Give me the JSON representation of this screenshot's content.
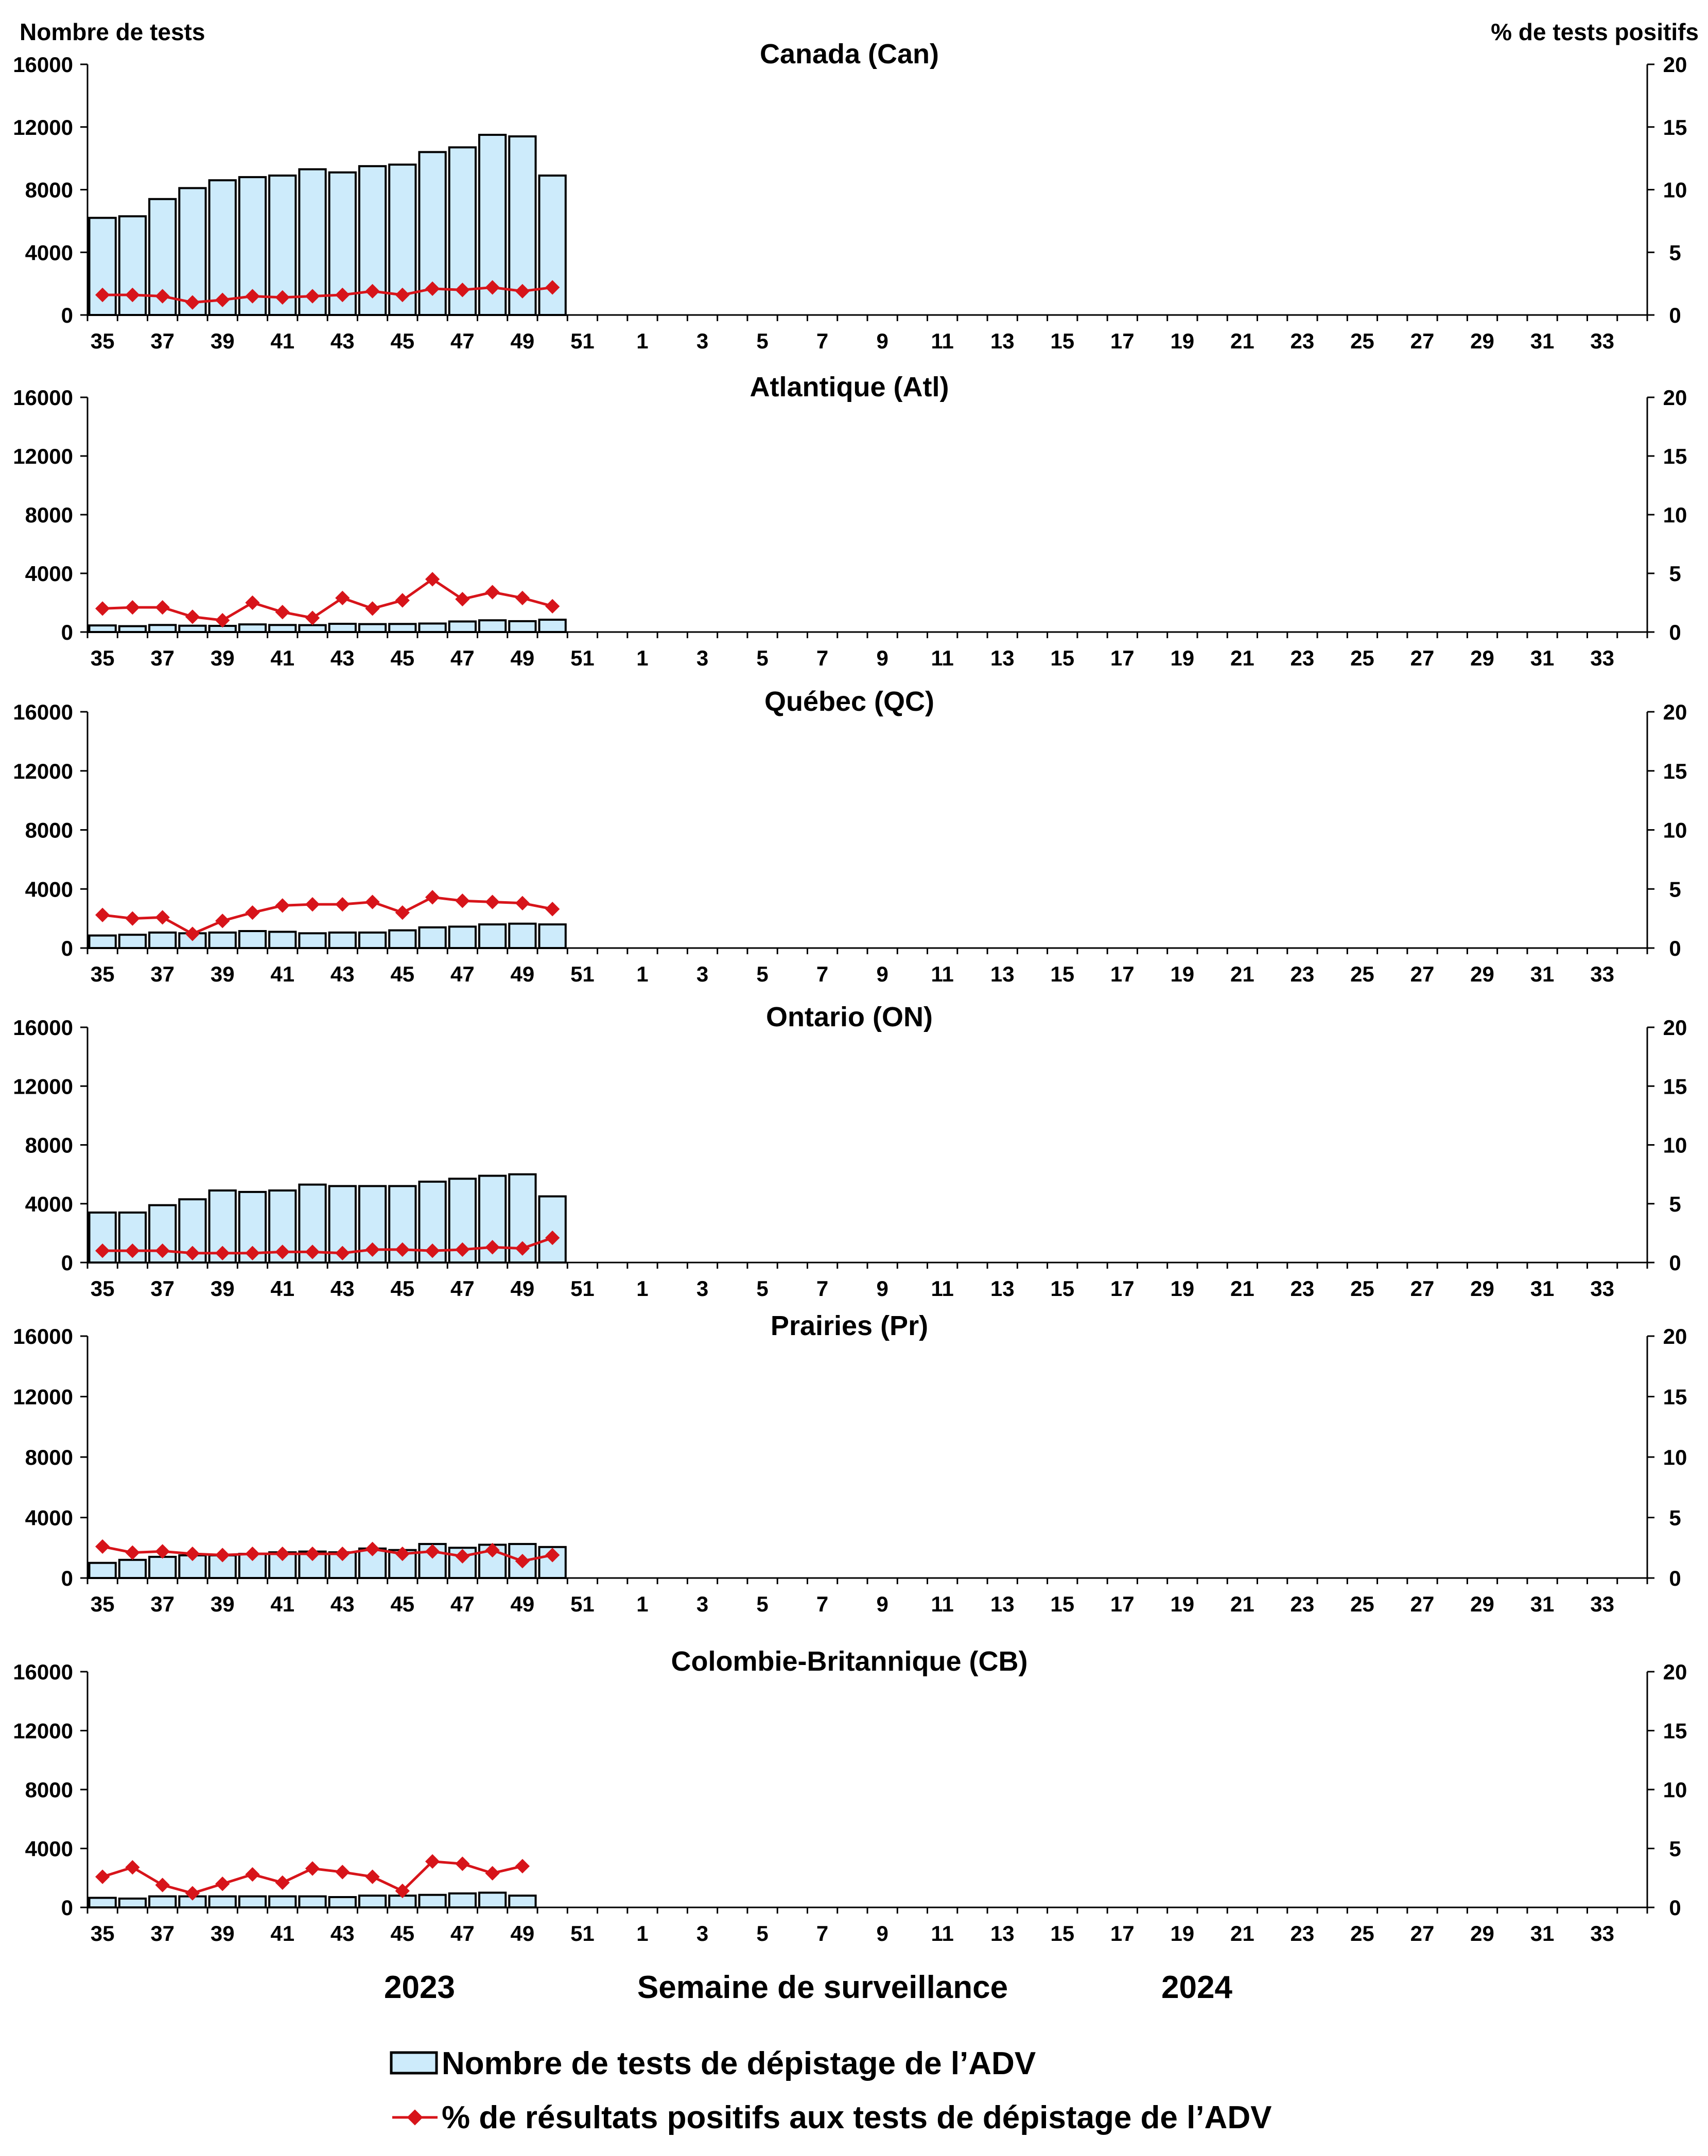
{
  "axis_titles": {
    "left": "Nombre de tests",
    "right": "% de tests positifs",
    "x": "Semaine de surveillance"
  },
  "year_labels": [
    "2023",
    "2024"
  ],
  "legend": {
    "bars": "Nombre de tests de dépistage de l’ADV",
    "line": "% de résultats positifs aux tests de dépistage de l’ADV"
  },
  "colors": {
    "bar_fill": "#cdebfb",
    "bar_stroke": "#000000",
    "line": "#d7141a"
  },
  "chart_data": [
    {
      "type": "bar+line",
      "title": "Canada (Can)",
      "x_tick_labels": [
        "35",
        "37",
        "39",
        "41",
        "43",
        "45",
        "47",
        "49",
        "51",
        "1",
        "3",
        "5",
        "7",
        "9",
        "11",
        "13",
        "15",
        "17",
        "19",
        "21",
        "23",
        "25",
        "27",
        "29",
        "31",
        "33"
      ],
      "weeks": [
        35,
        36,
        37,
        38,
        39,
        40,
        41,
        42,
        43,
        44,
        45,
        46,
        47,
        48,
        49,
        50
      ],
      "tests": [
        6200,
        6300,
        7400,
        8100,
        8600,
        8800,
        8900,
        9300,
        9100,
        9500,
        9600,
        10400,
        10700,
        11500,
        11400,
        8900
      ],
      "pct_positive": [
        1.6,
        1.6,
        1.5,
        1.0,
        1.2,
        1.5,
        1.4,
        1.5,
        1.6,
        1.9,
        1.6,
        2.1,
        2.0,
        2.2,
        1.9,
        2.2
      ],
      "y_left": {
        "min": 0,
        "max": 16000,
        "ticks": [
          "0",
          "4000",
          "8000",
          "12000",
          "16000"
        ]
      },
      "y_right": {
        "min": 0,
        "max": 20,
        "ticks": [
          "0",
          "5",
          "10",
          "15",
          "20"
        ]
      }
    },
    {
      "type": "bar+line",
      "title": "Atlantique (Atl)",
      "x_tick_labels": [
        "35",
        "37",
        "39",
        "41",
        "43",
        "45",
        "47",
        "49",
        "51",
        "1",
        "3",
        "5",
        "7",
        "9",
        "11",
        "13",
        "15",
        "17",
        "19",
        "21",
        "23",
        "25",
        "27",
        "29",
        "31",
        "33"
      ],
      "weeks": [
        35,
        36,
        37,
        38,
        39,
        40,
        41,
        42,
        43,
        44,
        45,
        46,
        47,
        48,
        49,
        50
      ],
      "tests": [
        450,
        400,
        480,
        430,
        420,
        520,
        480,
        470,
        560,
        540,
        550,
        580,
        720,
        800,
        740,
        840
      ],
      "pct_positive": [
        2.0,
        2.1,
        2.1,
        1.3,
        1.0,
        2.5,
        1.7,
        1.2,
        2.9,
        2.0,
        2.7,
        4.5,
        2.8,
        3.4,
        2.9,
        2.2
      ],
      "y_left": {
        "min": 0,
        "max": 16000,
        "ticks": [
          "0",
          "4000",
          "8000",
          "12000",
          "16000"
        ]
      },
      "y_right": {
        "min": 0,
        "max": 20,
        "ticks": [
          "0",
          "5",
          "10",
          "15",
          "20"
        ]
      }
    },
    {
      "type": "bar+line",
      "title": "Québec (QC)",
      "x_tick_labels": [
        "35",
        "37",
        "39",
        "41",
        "43",
        "45",
        "47",
        "49",
        "51",
        "1",
        "3",
        "5",
        "7",
        "9",
        "11",
        "13",
        "15",
        "17",
        "19",
        "21",
        "23",
        "25",
        "27",
        "29",
        "31",
        "33"
      ],
      "weeks": [
        35,
        36,
        37,
        38,
        39,
        40,
        41,
        42,
        43,
        44,
        45,
        46,
        47,
        48,
        49,
        50
      ],
      "tests": [
        850,
        900,
        1050,
        1000,
        1050,
        1150,
        1100,
        1000,
        1050,
        1050,
        1200,
        1400,
        1450,
        1600,
        1650,
        1600
      ],
      "pct_positive": [
        2.8,
        2.5,
        2.6,
        1.2,
        2.3,
        3.0,
        3.6,
        3.7,
        3.7,
        3.9,
        3.0,
        4.3,
        4.0,
        3.9,
        3.8,
        3.3
      ],
      "y_left": {
        "min": 0,
        "max": 16000,
        "ticks": [
          "0",
          "4000",
          "8000",
          "12000",
          "16000"
        ]
      },
      "y_right": {
        "min": 0,
        "max": 20,
        "ticks": [
          "0",
          "5",
          "10",
          "15",
          "20"
        ]
      }
    },
    {
      "type": "bar+line",
      "title": "Ontario (ON)",
      "x_tick_labels": [
        "35",
        "37",
        "39",
        "41",
        "43",
        "45",
        "47",
        "49",
        "51",
        "1",
        "3",
        "5",
        "7",
        "9",
        "11",
        "13",
        "15",
        "17",
        "19",
        "21",
        "23",
        "25",
        "27",
        "29",
        "31",
        "33"
      ],
      "weeks": [
        35,
        36,
        37,
        38,
        39,
        40,
        41,
        42,
        43,
        44,
        45,
        46,
        47,
        48,
        49,
        50
      ],
      "tests": [
        3400,
        3400,
        3900,
        4300,
        4900,
        4800,
        4900,
        5300,
        5200,
        5200,
        5200,
        5500,
        5700,
        5900,
        6000,
        4500
      ],
      "pct_positive": [
        1.0,
        1.0,
        1.0,
        0.8,
        0.8,
        0.8,
        0.9,
        0.9,
        0.8,
        1.1,
        1.1,
        1.0,
        1.1,
        1.3,
        1.2,
        2.1
      ],
      "y_left": {
        "min": 0,
        "max": 16000,
        "ticks": [
          "0",
          "4000",
          "8000",
          "12000",
          "16000"
        ]
      },
      "y_right": {
        "min": 0,
        "max": 20,
        "ticks": [
          "0",
          "5",
          "10",
          "15",
          "20"
        ]
      }
    },
    {
      "type": "bar+line",
      "title": "Prairies (Pr)",
      "x_tick_labels": [
        "35",
        "37",
        "39",
        "41",
        "43",
        "45",
        "47",
        "49",
        "51",
        "1",
        "3",
        "5",
        "7",
        "9",
        "11",
        "13",
        "15",
        "17",
        "19",
        "21",
        "23",
        "25",
        "27",
        "29",
        "31",
        "33"
      ],
      "weeks": [
        35,
        36,
        37,
        38,
        39,
        40,
        41,
        42,
        43,
        44,
        45,
        46,
        47,
        48,
        49,
        50
      ],
      "tests": [
        1000,
        1200,
        1400,
        1500,
        1500,
        1600,
        1700,
        1750,
        1700,
        1950,
        1850,
        2250,
        2000,
        2200,
        2250,
        2050
      ],
      "pct_positive": [
        2.6,
        2.1,
        2.2,
        2.0,
        1.9,
        2.0,
        2.0,
        2.0,
        2.0,
        2.4,
        2.0,
        2.2,
        1.8,
        2.3,
        1.4,
        1.9
      ],
      "y_left": {
        "min": 0,
        "max": 16000,
        "ticks": [
          "0",
          "4000",
          "8000",
          "12000",
          "16000"
        ]
      },
      "y_right": {
        "min": 0,
        "max": 20,
        "ticks": [
          "0",
          "5",
          "10",
          "15",
          "20"
        ]
      }
    },
    {
      "type": "bar+line",
      "title": "Colombie-Britannique (CB)",
      "x_tick_labels": [
        "35",
        "37",
        "39",
        "41",
        "43",
        "45",
        "47",
        "49",
        "51",
        "1",
        "3",
        "5",
        "7",
        "9",
        "11",
        "13",
        "15",
        "17",
        "19",
        "21",
        "23",
        "25",
        "27",
        "29",
        "31",
        "33"
      ],
      "weeks": [
        35,
        36,
        37,
        38,
        39,
        40,
        41,
        42,
        43,
        44,
        45,
        46,
        47,
        48,
        49
      ],
      "tests": [
        650,
        600,
        750,
        750,
        750,
        750,
        750,
        750,
        700,
        800,
        800,
        850,
        950,
        1000,
        800
      ],
      "pct_positive": [
        2.6,
        3.4,
        1.9,
        1.2,
        2.0,
        2.8,
        2.1,
        3.3,
        3.0,
        2.6,
        1.4,
        3.9,
        3.7,
        2.9,
        3.5
      ],
      "y_left": {
        "min": 0,
        "max": 16000,
        "ticks": [
          "0",
          "4000",
          "8000",
          "12000",
          "16000"
        ]
      },
      "y_right": {
        "min": 0,
        "max": 20,
        "ticks": [
          "0",
          "5",
          "10",
          "15",
          "20"
        ]
      }
    }
  ]
}
